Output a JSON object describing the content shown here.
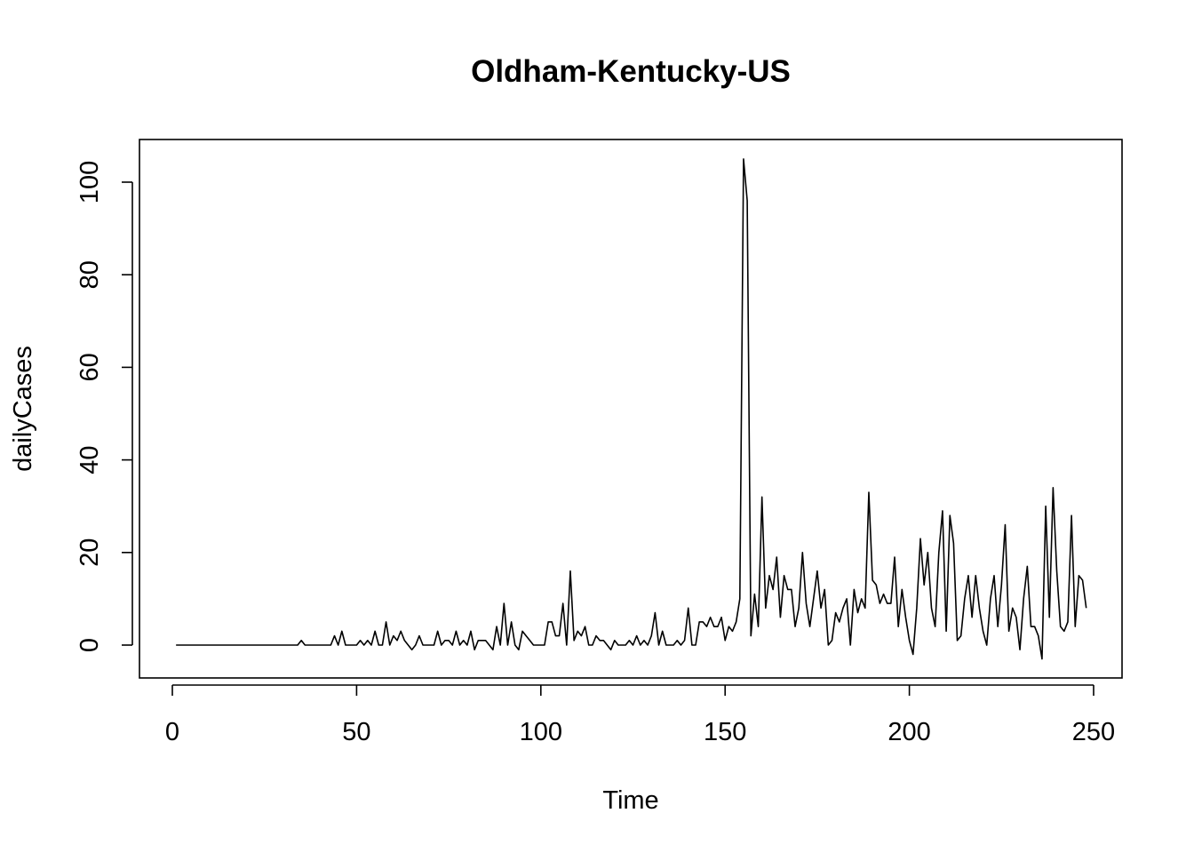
{
  "chart_data": {
    "type": "line",
    "title": "Oldham-Kentucky-US",
    "xlabel": "Time",
    "ylabel": "dailyCases",
    "xlim": [
      0,
      250
    ],
    "ylim": [
      -7,
      110
    ],
    "x_ticks": [
      0,
      50,
      100,
      150,
      200,
      250
    ],
    "y_ticks": [
      0,
      20,
      40,
      60,
      80,
      100
    ],
    "grid": false,
    "legend": "none",
    "line_color": "#000000",
    "x": [
      1,
      2,
      3,
      4,
      5,
      6,
      7,
      8,
      9,
      10,
      11,
      12,
      13,
      14,
      15,
      16,
      17,
      18,
      19,
      20,
      21,
      22,
      23,
      24,
      25,
      26,
      27,
      28,
      29,
      30,
      31,
      32,
      33,
      34,
      35,
      36,
      37,
      38,
      39,
      40,
      41,
      42,
      43,
      44,
      45,
      46,
      47,
      48,
      49,
      50,
      51,
      52,
      53,
      54,
      55,
      56,
      57,
      58,
      59,
      60,
      61,
      62,
      63,
      64,
      65,
      66,
      67,
      68,
      69,
      70,
      71,
      72,
      73,
      74,
      75,
      76,
      77,
      78,
      79,
      80,
      81,
      82,
      83,
      84,
      85,
      86,
      87,
      88,
      89,
      90,
      91,
      92,
      93,
      94,
      95,
      96,
      97,
      98,
      99,
      100,
      101,
      102,
      103,
      104,
      105,
      106,
      107,
      108,
      109,
      110,
      111,
      112,
      113,
      114,
      115,
      116,
      117,
      118,
      119,
      120,
      121,
      122,
      123,
      124,
      125,
      126,
      127,
      128,
      129,
      130,
      131,
      132,
      133,
      134,
      135,
      136,
      137,
      138,
      139,
      140,
      141,
      142,
      143,
      144,
      145,
      146,
      147,
      148,
      149,
      150,
      151,
      152,
      153,
      154,
      155,
      156,
      157,
      158,
      159,
      160,
      161,
      162,
      163,
      164,
      165,
      166,
      167,
      168,
      169,
      170,
      171,
      172,
      173,
      174,
      175,
      176,
      177,
      178,
      179,
      180,
      181,
      182,
      183,
      184,
      185,
      186,
      187,
      188,
      189,
      190,
      191,
      192,
      193,
      194,
      195,
      196,
      197,
      198,
      199,
      200,
      201,
      202,
      203,
      204,
      205,
      206,
      207,
      208,
      209,
      210,
      211,
      212,
      213,
      214,
      215,
      216,
      217,
      218,
      219,
      220,
      221,
      222,
      223,
      224,
      225,
      226,
      227,
      228,
      229,
      230,
      231,
      232,
      233,
      234,
      235,
      236,
      237,
      238,
      239,
      240,
      241,
      242,
      243,
      244,
      245,
      246,
      247,
      248
    ],
    "y": [
      0,
      0,
      0,
      0,
      0,
      0,
      0,
      0,
      0,
      0,
      0,
      0,
      0,
      0,
      0,
      0,
      0,
      0,
      0,
      0,
      0,
      0,
      0,
      0,
      0,
      0,
      0,
      0,
      0,
      0,
      0,
      0,
      0,
      0,
      1,
      0,
      0,
      0,
      0,
      0,
      0,
      0,
      0,
      2,
      0,
      3,
      0,
      0,
      0,
      0,
      1,
      0,
      1,
      0,
      3,
      0,
      0,
      5,
      0,
      2,
      1,
      3,
      1,
      0,
      -1,
      0,
      2,
      0,
      0,
      0,
      0,
      3,
      0,
      1,
      1,
      0,
      3,
      0,
      1,
      0,
      3,
      -1,
      1,
      1,
      1,
      0,
      -1,
      4,
      0,
      9,
      0,
      5,
      0,
      -1,
      3,
      2,
      1,
      0,
      0,
      0,
      0,
      5,
      5,
      2,
      2,
      9,
      0,
      16,
      1,
      3,
      2,
      4,
      0,
      0,
      2,
      1,
      1,
      0,
      -1,
      1,
      0,
      0,
      0,
      1,
      0,
      2,
      0,
      1,
      0,
      2,
      7,
      0,
      3,
      0,
      0,
      0,
      1,
      0,
      1,
      8,
      0,
      0,
      5,
      5,
      4,
      6,
      4,
      4,
      6,
      1,
      4,
      3,
      5,
      10,
      105,
      96,
      2,
      11,
      4,
      32,
      8,
      15,
      12,
      19,
      6,
      15,
      12,
      12,
      4,
      8,
      20,
      9,
      4,
      10,
      16,
      8,
      12,
      0,
      1,
      7,
      5,
      8,
      10,
      0,
      12,
      7,
      10,
      8,
      33,
      14,
      13,
      9,
      11,
      9,
      9,
      19,
      4,
      12,
      6,
      1,
      -2,
      8,
      23,
      13,
      20,
      8,
      4,
      20,
      29,
      3,
      28,
      22,
      1,
      2,
      10,
      15,
      6,
      15,
      8,
      3,
      0,
      10,
      15,
      4,
      13,
      26,
      3,
      8,
      6,
      -1,
      10,
      17,
      4,
      4,
      2,
      -3,
      30,
      6,
      34,
      16,
      4,
      3,
      5,
      28,
      4,
      15,
      14,
      8
    ]
  }
}
